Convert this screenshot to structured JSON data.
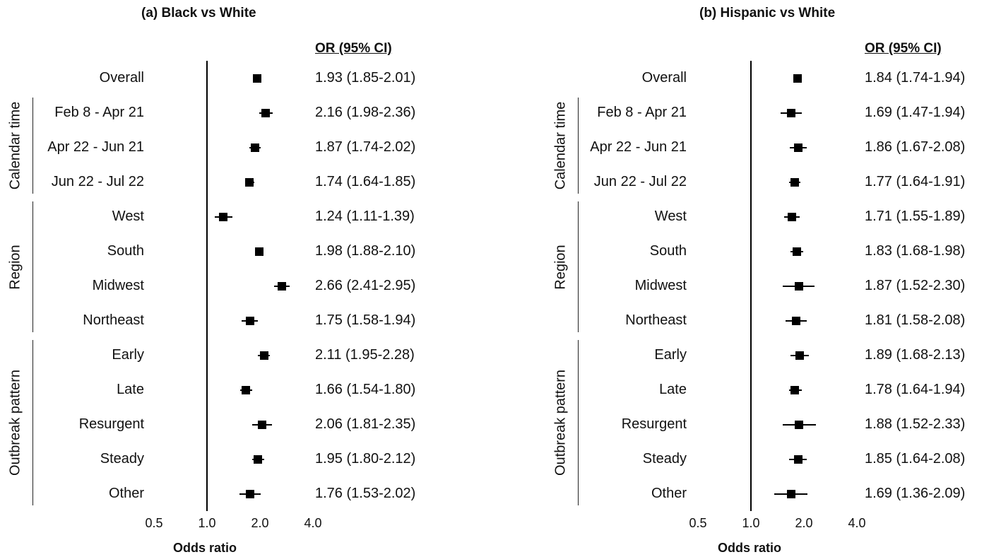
{
  "chart_data": [
    {
      "type": "forest",
      "title": "(a) Black vs White",
      "or_header": "OR (95% CI)",
      "xlabel": "Odds ratio",
      "x_scale": "log2",
      "xlim": [
        0.5,
        4.0
      ],
      "xticks": [
        "0.5",
        "1.0",
        "2.0",
        "4.0"
      ],
      "reference_value": 1.0,
      "rows": [
        {
          "label": "Overall",
          "or": 1.93,
          "lower": 1.85,
          "upper": 2.01,
          "text": "1.93 (1.85-2.01)",
          "group": ""
        },
        {
          "label": "Feb 8 - Apr 21",
          "or": 2.16,
          "lower": 1.98,
          "upper": 2.36,
          "text": "2.16 (1.98-2.36)",
          "group": "Calendar time"
        },
        {
          "label": "Apr 22 - Jun 21",
          "or": 1.87,
          "lower": 1.74,
          "upper": 2.02,
          "text": "1.87 (1.74-2.02)",
          "group": "Calendar time"
        },
        {
          "label": "Jun 22 - Jul 22",
          "or": 1.74,
          "lower": 1.64,
          "upper": 1.85,
          "text": "1.74 (1.64-1.85)",
          "group": "Calendar time"
        },
        {
          "label": "West",
          "or": 1.24,
          "lower": 1.11,
          "upper": 1.39,
          "text": "1.24 (1.11-1.39)",
          "group": "Region"
        },
        {
          "label": "South",
          "or": 1.98,
          "lower": 1.88,
          "upper": 2.1,
          "text": "1.98 (1.88-2.10)",
          "group": "Region"
        },
        {
          "label": "Midwest",
          "or": 2.66,
          "lower": 2.41,
          "upper": 2.95,
          "text": "2.66 (2.41-2.95)",
          "group": "Region"
        },
        {
          "label": "Northeast",
          "or": 1.75,
          "lower": 1.58,
          "upper": 1.94,
          "text": "1.75 (1.58-1.94)",
          "group": "Region"
        },
        {
          "label": "Early",
          "or": 2.11,
          "lower": 1.95,
          "upper": 2.28,
          "text": "2.11 (1.95-2.28)",
          "group": "Outbreak pattern"
        },
        {
          "label": "Late",
          "or": 1.66,
          "lower": 1.54,
          "upper": 1.8,
          "text": "1.66 (1.54-1.80)",
          "group": "Outbreak pattern"
        },
        {
          "label": "Resurgent",
          "or": 2.06,
          "lower": 1.81,
          "upper": 2.35,
          "text": "2.06 (1.81-2.35)",
          "group": "Outbreak pattern"
        },
        {
          "label": "Steady",
          "or": 1.95,
          "lower": 1.8,
          "upper": 2.12,
          "text": "1.95 (1.80-2.12)",
          "group": "Outbreak pattern"
        },
        {
          "label": "Other",
          "or": 1.76,
          "lower": 1.53,
          "upper": 2.02,
          "text": "1.76 (1.53-2.02)",
          "group": "Outbreak pattern"
        }
      ],
      "groups": [
        "Calendar time",
        "Region",
        "Outbreak pattern"
      ]
    },
    {
      "type": "forest",
      "title": "(b) Hispanic vs White",
      "or_header": "OR (95% CI)",
      "xlabel": "Odds ratio",
      "x_scale": "log2",
      "xlim": [
        0.5,
        4.0
      ],
      "xticks": [
        "0.5",
        "1.0",
        "2.0",
        "4.0"
      ],
      "reference_value": 1.0,
      "rows": [
        {
          "label": "Overall",
          "or": 1.84,
          "lower": 1.74,
          "upper": 1.94,
          "text": "1.84 (1.74-1.94)",
          "group": ""
        },
        {
          "label": "Feb 8 - Apr 21",
          "or": 1.69,
          "lower": 1.47,
          "upper": 1.94,
          "text": "1.69 (1.47-1.94)",
          "group": "Calendar time"
        },
        {
          "label": "Apr 22 - Jun 21",
          "or": 1.86,
          "lower": 1.67,
          "upper": 2.08,
          "text": "1.86 (1.67-2.08)",
          "group": "Calendar time"
        },
        {
          "label": "Jun 22 - Jul 22",
          "or": 1.77,
          "lower": 1.64,
          "upper": 1.91,
          "text": "1.77 (1.64-1.91)",
          "group": "Calendar time"
        },
        {
          "label": "West",
          "or": 1.71,
          "lower": 1.55,
          "upper": 1.89,
          "text": "1.71 (1.55-1.89)",
          "group": "Region"
        },
        {
          "label": "South",
          "or": 1.83,
          "lower": 1.68,
          "upper": 1.98,
          "text": "1.83 (1.68-1.98)",
          "group": "Region"
        },
        {
          "label": "Midwest",
          "or": 1.87,
          "lower": 1.52,
          "upper": 2.3,
          "text": "1.87 (1.52-2.30)",
          "group": "Region"
        },
        {
          "label": "Northeast",
          "or": 1.81,
          "lower": 1.58,
          "upper": 2.08,
          "text": "1.81 (1.58-2.08)",
          "group": "Region"
        },
        {
          "label": "Early",
          "or": 1.89,
          "lower": 1.68,
          "upper": 2.13,
          "text": "1.89 (1.68-2.13)",
          "group": "Outbreak pattern"
        },
        {
          "label": "Late",
          "or": 1.78,
          "lower": 1.64,
          "upper": 1.94,
          "text": "1.78 (1.64-1.94)",
          "group": "Outbreak pattern"
        },
        {
          "label": "Resurgent",
          "or": 1.88,
          "lower": 1.52,
          "upper": 2.33,
          "text": "1.88 (1.52-2.33)",
          "group": "Outbreak pattern"
        },
        {
          "label": "Steady",
          "or": 1.85,
          "lower": 1.64,
          "upper": 2.08,
          "text": "1.85 (1.64-2.08)",
          "group": "Outbreak pattern"
        },
        {
          "label": "Other",
          "or": 1.69,
          "lower": 1.36,
          "upper": 2.09,
          "text": "1.69 (1.36-2.09)",
          "group": "Outbreak pattern"
        }
      ],
      "groups": [
        "Calendar time",
        "Region",
        "Outbreak pattern"
      ]
    }
  ]
}
